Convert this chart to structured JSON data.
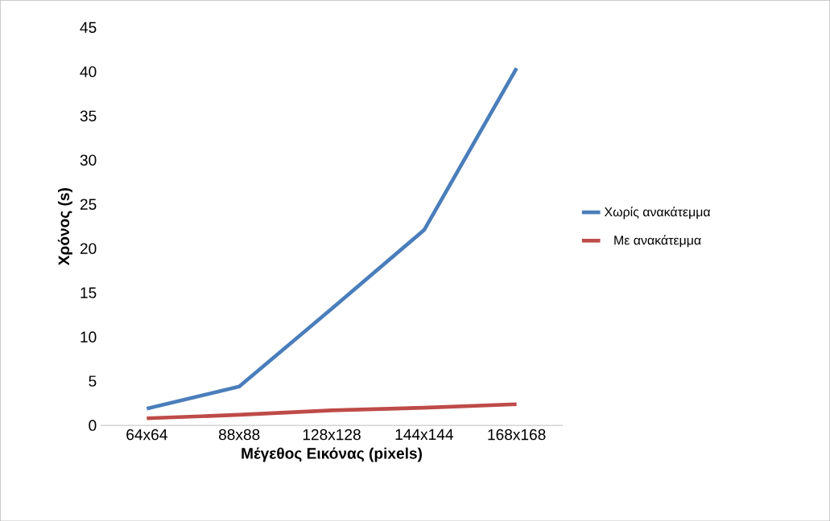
{
  "chart_data": {
    "type": "line",
    "xlabel": "Μέγεθος Εικόνας (pixels)",
    "ylabel": "Χρόνος (s)",
    "categories": [
      "64x64",
      "88x88",
      "128x128",
      "144x144",
      "168x168"
    ],
    "series": [
      {
        "name": "Χωρίς ανακάτεμμα",
        "color": "#4a7ebb",
        "values": [
          1.9,
          4.4,
          13.2,
          22.1,
          40.4
        ]
      },
      {
        "name": "Με ανακάτεμμα",
        "color": "#be4b48",
        "values": [
          0.8,
          1.2,
          1.7,
          2.0,
          2.4
        ]
      }
    ],
    "ylim": [
      0,
      45
    ],
    "yticks": [
      0,
      5,
      10,
      15,
      20,
      25,
      30,
      35,
      40,
      45
    ],
    "grid": false,
    "legend": "right",
    "marker": "none",
    "line_style": "solid"
  }
}
